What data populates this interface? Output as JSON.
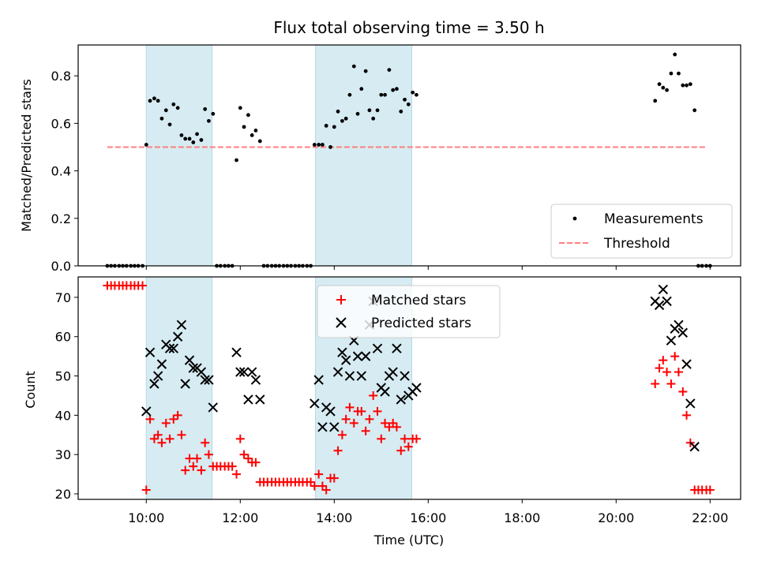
{
  "figure": {
    "title": "Flux total observing time = 3.50 h",
    "xlabel": "Time (UTC)",
    "x_ticks": [
      "10:00",
      "12:00",
      "14:00",
      "16:00",
      "18:00",
      "20:00",
      "22:00"
    ],
    "highlight_color": "#add8e6"
  },
  "chart_data": [
    {
      "type": "scatter",
      "title": "Flux total observing time = 3.50 h",
      "xlabel": "",
      "ylabel": "Matched/Predicted stars",
      "x_unit": "hours UTC",
      "xlim": [
        8.55,
        22.65
      ],
      "ylim": [
        0.0,
        0.93
      ],
      "y_ticks": [
        "0.0",
        "0.2",
        "0.4",
        "0.6",
        "0.8"
      ],
      "grid": false,
      "legend": "lower-right",
      "legend_entries": [
        "Measurements",
        "Threshold"
      ],
      "highlight_intervals": [
        [
          10.0,
          11.4
        ],
        [
          13.6,
          15.65
        ]
      ],
      "threshold": {
        "name": "Threshold",
        "y": 0.5,
        "x": [
          9.17,
          21.93
        ],
        "color": "#ff7f7f",
        "dash": true
      },
      "series": [
        {
          "name": "Measurements",
          "color": "#000000",
          "points": [
            [
              9.17,
              0.0
            ],
            [
              9.25,
              0.0
            ],
            [
              9.33,
              0.0
            ],
            [
              9.42,
              0.0
            ],
            [
              9.5,
              0.0
            ],
            [
              9.58,
              0.0
            ],
            [
              9.67,
              0.0
            ],
            [
              9.75,
              0.0
            ],
            [
              9.83,
              0.0
            ],
            [
              9.92,
              0.0
            ],
            [
              10.0,
              0.51
            ],
            [
              10.08,
              0.695
            ],
            [
              10.17,
              0.705
            ],
            [
              10.25,
              0.695
            ],
            [
              10.33,
              0.62
            ],
            [
              10.42,
              0.655
            ],
            [
              10.5,
              0.595
            ],
            [
              10.58,
              0.68
            ],
            [
              10.67,
              0.665
            ],
            [
              10.75,
              0.55
            ],
            [
              10.83,
              0.535
            ],
            [
              10.92,
              0.535
            ],
            [
              11.0,
              0.52
            ],
            [
              11.08,
              0.555
            ],
            [
              11.17,
              0.53
            ],
            [
              11.25,
              0.66
            ],
            [
              11.33,
              0.61
            ],
            [
              11.42,
              0.64
            ],
            [
              11.5,
              0.0
            ],
            [
              11.58,
              0.0
            ],
            [
              11.67,
              0.0
            ],
            [
              11.75,
              0.0
            ],
            [
              11.83,
              0.0
            ],
            [
              11.92,
              0.445
            ],
            [
              12.0,
              0.665
            ],
            [
              12.08,
              0.585
            ],
            [
              12.17,
              0.635
            ],
            [
              12.25,
              0.55
            ],
            [
              12.33,
              0.57
            ],
            [
              12.42,
              0.525
            ],
            [
              12.5,
              0.0
            ],
            [
              12.58,
              0.0
            ],
            [
              12.67,
              0.0
            ],
            [
              12.75,
              0.0
            ],
            [
              12.83,
              0.0
            ],
            [
              12.92,
              0.0
            ],
            [
              13.0,
              0.0
            ],
            [
              13.08,
              0.0
            ],
            [
              13.17,
              0.0
            ],
            [
              13.25,
              0.0
            ],
            [
              13.33,
              0.0
            ],
            [
              13.42,
              0.0
            ],
            [
              13.5,
              0.0
            ],
            [
              13.58,
              0.51
            ],
            [
              13.67,
              0.51
            ],
            [
              13.75,
              0.51
            ],
            [
              13.83,
              0.59
            ],
            [
              13.92,
              0.5
            ],
            [
              14.0,
              0.585
            ],
            [
              14.08,
              0.65
            ],
            [
              14.17,
              0.61
            ],
            [
              14.25,
              0.62
            ],
            [
              14.33,
              0.72
            ],
            [
              14.42,
              0.84
            ],
            [
              14.5,
              0.64
            ],
            [
              14.58,
              0.745
            ],
            [
              14.67,
              0.82
            ],
            [
              14.75,
              0.655
            ],
            [
              14.83,
              0.62
            ],
            [
              14.92,
              0.655
            ],
            [
              15.0,
              0.72
            ],
            [
              15.08,
              0.72
            ],
            [
              15.17,
              0.825
            ],
            [
              15.25,
              0.74
            ],
            [
              15.33,
              0.745
            ],
            [
              15.42,
              0.65
            ],
            [
              15.5,
              0.7
            ],
            [
              15.58,
              0.68
            ],
            [
              15.67,
              0.73
            ],
            [
              15.75,
              0.72
            ],
            [
              20.83,
              0.695
            ],
            [
              20.92,
              0.765
            ],
            [
              21.0,
              0.75
            ],
            [
              21.08,
              0.74
            ],
            [
              21.17,
              0.81
            ],
            [
              21.25,
              0.89
            ],
            [
              21.33,
              0.81
            ],
            [
              21.42,
              0.76
            ],
            [
              21.5,
              0.76
            ],
            [
              21.58,
              0.765
            ],
            [
              21.67,
              0.655
            ],
            [
              21.75,
              0.0
            ],
            [
              21.83,
              0.0
            ],
            [
              21.92,
              0.0
            ],
            [
              22.0,
              0.0
            ]
          ]
        }
      ]
    },
    {
      "type": "scatter",
      "title": "",
      "xlabel": "Time (UTC)",
      "ylabel": "Count",
      "x_unit": "hours UTC",
      "xlim": [
        8.55,
        22.65
      ],
      "ylim": [
        18.6,
        75.2
      ],
      "y_ticks": [
        "20",
        "30",
        "40",
        "50",
        "60",
        "70"
      ],
      "grid": false,
      "legend": "top-center",
      "legend_entries": [
        "Matched stars",
        "Predicted stars"
      ],
      "highlight_intervals": [
        [
          10.0,
          11.4
        ],
        [
          13.6,
          15.65
        ]
      ],
      "series": [
        {
          "name": "Matched stars",
          "marker": "plus",
          "color": "#ff0000",
          "points": [
            [
              9.17,
              73
            ],
            [
              9.25,
              73
            ],
            [
              9.33,
              73
            ],
            [
              9.42,
              73
            ],
            [
              9.5,
              73
            ],
            [
              9.58,
              73
            ],
            [
              9.67,
              73
            ],
            [
              9.75,
              73
            ],
            [
              9.83,
              73
            ],
            [
              9.92,
              73
            ],
            [
              10.0,
              21
            ],
            [
              10.08,
              39
            ],
            [
              10.17,
              34
            ],
            [
              10.25,
              35
            ],
            [
              10.33,
              33
            ],
            [
              10.42,
              38
            ],
            [
              10.5,
              34
            ],
            [
              10.58,
              39
            ],
            [
              10.67,
              40
            ],
            [
              10.75,
              35
            ],
            [
              10.83,
              26
            ],
            [
              10.92,
              29
            ],
            [
              11.0,
              27
            ],
            [
              11.08,
              29
            ],
            [
              11.17,
              26
            ],
            [
              11.25,
              33
            ],
            [
              11.33,
              30
            ],
            [
              11.42,
              27
            ],
            [
              11.5,
              27
            ],
            [
              11.58,
              27
            ],
            [
              11.67,
              27
            ],
            [
              11.75,
              27
            ],
            [
              11.83,
              27
            ],
            [
              11.92,
              25
            ],
            [
              12.0,
              34
            ],
            [
              12.08,
              30
            ],
            [
              12.17,
              29
            ],
            [
              12.25,
              28
            ],
            [
              12.33,
              28
            ],
            [
              12.42,
              23
            ],
            [
              12.5,
              23
            ],
            [
              12.58,
              23
            ],
            [
              12.67,
              23
            ],
            [
              12.75,
              23
            ],
            [
              12.83,
              23
            ],
            [
              12.92,
              23
            ],
            [
              13.0,
              23
            ],
            [
              13.08,
              23
            ],
            [
              13.17,
              23
            ],
            [
              13.25,
              23
            ],
            [
              13.33,
              23
            ],
            [
              13.42,
              23
            ],
            [
              13.5,
              23
            ],
            [
              13.58,
              22
            ],
            [
              13.67,
              25
            ],
            [
              13.75,
              22
            ],
            [
              13.83,
              21
            ],
            [
              13.92,
              24
            ],
            [
              14.0,
              24
            ],
            [
              14.08,
              31
            ],
            [
              14.17,
              35
            ],
            [
              14.25,
              39
            ],
            [
              14.33,
              42
            ],
            [
              14.42,
              38
            ],
            [
              14.5,
              41
            ],
            [
              14.58,
              41
            ],
            [
              14.67,
              36
            ],
            [
              14.75,
              39
            ],
            [
              14.83,
              45
            ],
            [
              14.92,
              41
            ],
            [
              15.0,
              34
            ],
            [
              15.08,
              38
            ],
            [
              15.17,
              37
            ],
            [
              15.25,
              38
            ],
            [
              15.33,
              37
            ],
            [
              15.42,
              31
            ],
            [
              15.5,
              34
            ],
            [
              15.58,
              32
            ],
            [
              15.67,
              34
            ],
            [
              15.75,
              34
            ],
            [
              20.83,
              48
            ],
            [
              20.92,
              52
            ],
            [
              21.0,
              54
            ],
            [
              21.08,
              51
            ],
            [
              21.17,
              48
            ],
            [
              21.25,
              55
            ],
            [
              21.33,
              51
            ],
            [
              21.42,
              46
            ],
            [
              21.5,
              40
            ],
            [
              21.58,
              33
            ],
            [
              21.67,
              21
            ],
            [
              21.75,
              21
            ],
            [
              21.83,
              21
            ],
            [
              21.92,
              21
            ],
            [
              22.0,
              21
            ]
          ]
        },
        {
          "name": "Predicted stars",
          "marker": "cross",
          "color": "#000000",
          "points": [
            [
              10.0,
              41
            ],
            [
              10.08,
              56
            ],
            [
              10.17,
              48
            ],
            [
              10.25,
              50
            ],
            [
              10.33,
              53
            ],
            [
              10.42,
              58
            ],
            [
              10.5,
              57
            ],
            [
              10.58,
              57
            ],
            [
              10.67,
              60
            ],
            [
              10.75,
              63
            ],
            [
              10.83,
              48
            ],
            [
              10.92,
              54
            ],
            [
              11.0,
              52
            ],
            [
              11.08,
              52
            ],
            [
              11.17,
              51
            ],
            [
              11.25,
              49
            ],
            [
              11.33,
              49
            ],
            [
              11.42,
              42
            ],
            [
              11.92,
              56
            ],
            [
              12.0,
              51
            ],
            [
              12.08,
              51
            ],
            [
              12.17,
              44
            ],
            [
              12.25,
              51
            ],
            [
              12.33,
              49
            ],
            [
              12.42,
              44
            ],
            [
              13.58,
              43
            ],
            [
              13.67,
              49
            ],
            [
              13.75,
              37
            ],
            [
              13.83,
              42
            ],
            [
              13.92,
              41
            ],
            [
              14.0,
              37
            ],
            [
              14.08,
              51
            ],
            [
              14.17,
              56
            ],
            [
              14.25,
              54
            ],
            [
              14.33,
              50
            ],
            [
              14.42,
              59
            ],
            [
              14.5,
              55
            ],
            [
              14.58,
              50
            ],
            [
              14.67,
              55
            ],
            [
              14.75,
              63
            ],
            [
              14.83,
              69
            ],
            [
              14.92,
              57
            ],
            [
              15.0,
              47
            ],
            [
              15.08,
              46
            ],
            [
              15.17,
              50
            ],
            [
              15.25,
              51
            ],
            [
              15.33,
              57
            ],
            [
              15.42,
              44
            ],
            [
              15.5,
              50
            ],
            [
              15.58,
              45
            ],
            [
              15.67,
              46
            ],
            [
              15.75,
              47
            ],
            [
              20.83,
              69
            ],
            [
              20.92,
              68
            ],
            [
              21.0,
              72
            ],
            [
              21.08,
              69
            ],
            [
              21.17,
              59
            ],
            [
              21.25,
              62
            ],
            [
              21.33,
              63
            ],
            [
              21.42,
              61
            ],
            [
              21.5,
              53
            ],
            [
              21.58,
              43
            ],
            [
              21.67,
              32
            ]
          ]
        }
      ]
    }
  ]
}
